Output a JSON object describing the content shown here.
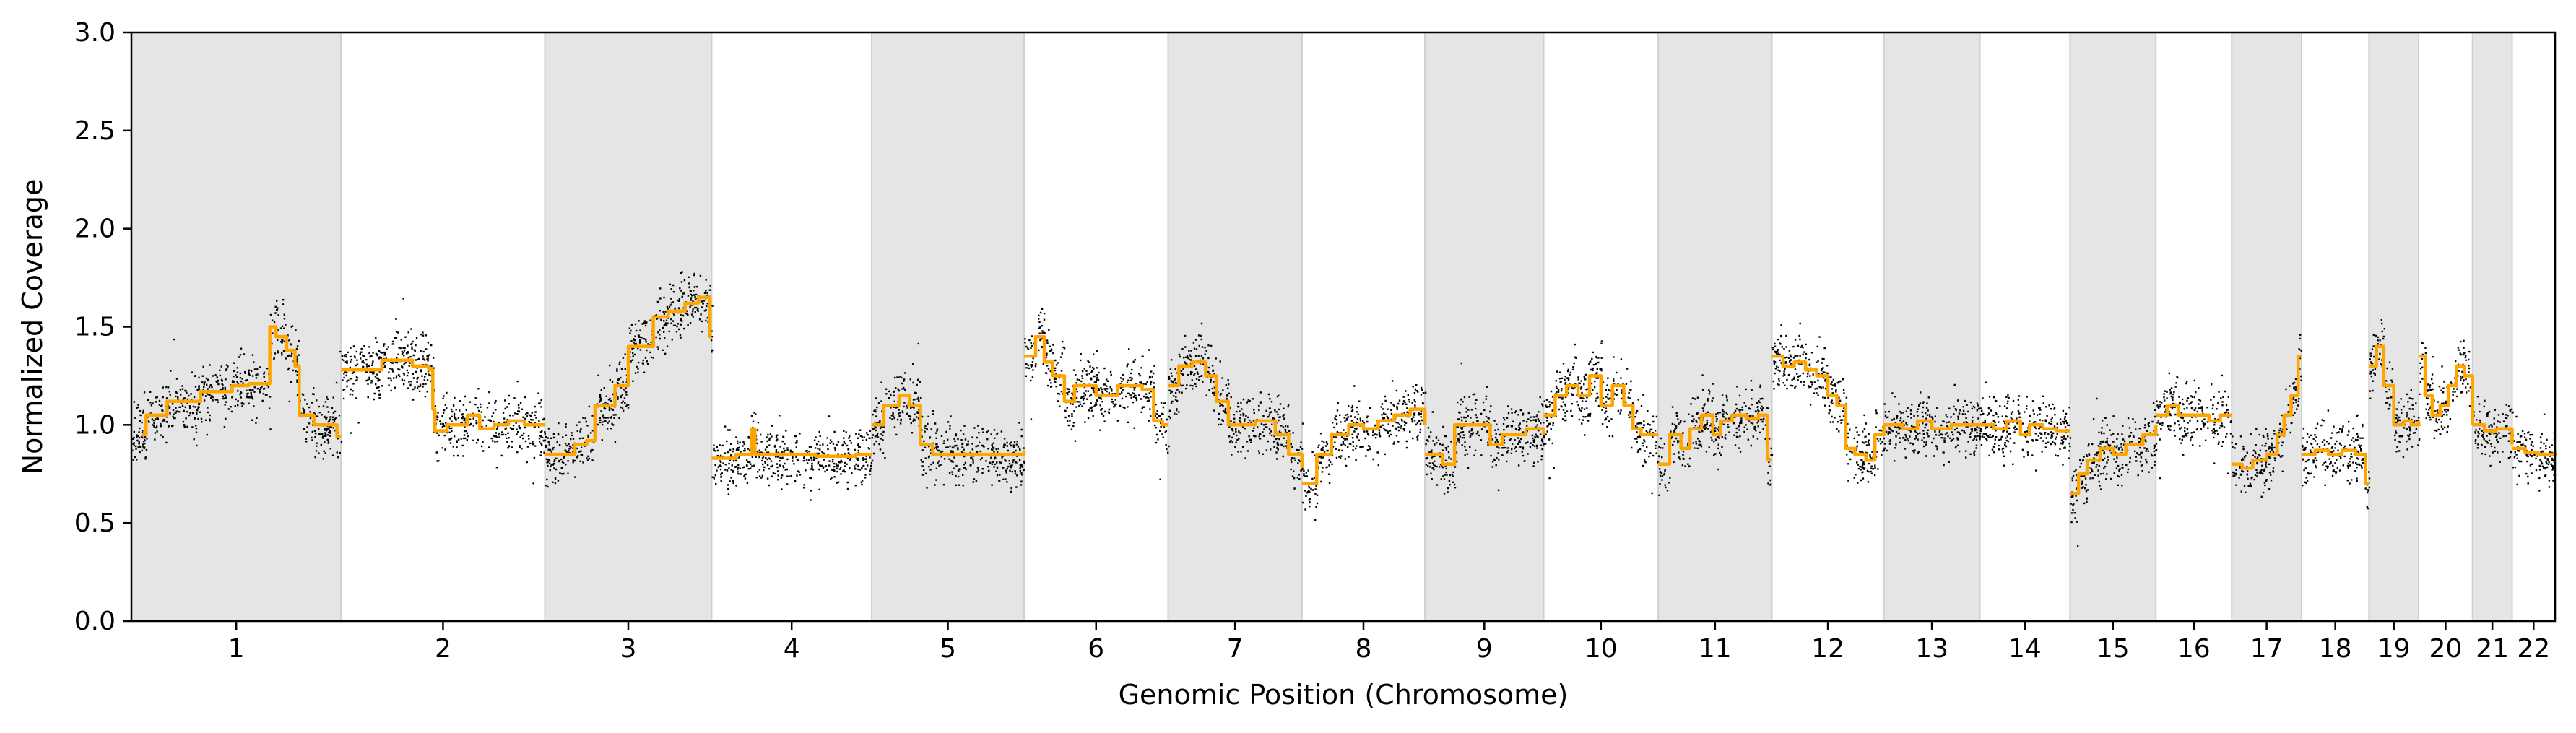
{
  "chart_data": {
    "type": "scatter",
    "title": "",
    "xlabel": "Genomic Position (Chromosome)",
    "ylabel": "Normalized Coverage",
    "ylim": [
      0,
      3
    ],
    "yticks": [
      "0.0",
      "0.5",
      "1.0",
      "1.5",
      "2.0",
      "2.5",
      "3.0"
    ],
    "grid": false,
    "legend": "none",
    "point_color": "#000000",
    "segment_color": "#ffa500",
    "shade_color": "#e5e5e5",
    "chromosomes": [
      {
        "label": "1",
        "length": 249,
        "shaded": true,
        "segments": [
          [
            0.05,
            0.95
          ],
          [
            0.07,
            1.05
          ],
          [
            0.17,
            1.12
          ],
          [
            0.33,
            1.17
          ],
          [
            0.48,
            1.2
          ],
          [
            0.56,
            1.21
          ],
          [
            0.62,
            1.21
          ],
          [
            0.66,
            1.5
          ],
          [
            0.69,
            1.45
          ],
          [
            0.74,
            1.38
          ],
          [
            0.78,
            1.3
          ],
          [
            0.8,
            1.05
          ],
          [
            0.87,
            1.0
          ],
          [
            0.94,
            1.0
          ],
          [
            0.98,
            0.94
          ]
        ]
      },
      {
        "label": "2",
        "length": 242,
        "shaded": false,
        "segments": [
          [
            0.0,
            1.28
          ],
          [
            0.2,
            1.33
          ],
          [
            0.35,
            1.3
          ],
          [
            0.43,
            1.28
          ],
          [
            0.45,
            1.08
          ],
          [
            0.46,
            0.97
          ],
          [
            0.52,
            1.0
          ],
          [
            0.62,
            1.05
          ],
          [
            0.68,
            0.98
          ],
          [
            0.75,
            1.0
          ],
          [
            0.82,
            1.02
          ],
          [
            0.9,
            1.0
          ],
          [
            0.96,
            1.0
          ]
        ]
      },
      {
        "label": "3",
        "length": 198,
        "shaded": true,
        "segments": [
          [
            0.0,
            0.85
          ],
          [
            0.18,
            0.9
          ],
          [
            0.25,
            0.92
          ],
          [
            0.3,
            1.1
          ],
          [
            0.42,
            1.2
          ],
          [
            0.5,
            1.4
          ],
          [
            0.65,
            1.55
          ],
          [
            0.74,
            1.58
          ],
          [
            0.84,
            1.62
          ],
          [
            0.92,
            1.65
          ],
          [
            0.99,
            1.45
          ]
        ]
      },
      {
        "label": "4",
        "length": 190,
        "shaded": false,
        "segments": [
          [
            0.0,
            0.83
          ],
          [
            0.15,
            0.85
          ],
          [
            0.25,
            0.98
          ],
          [
            0.27,
            0.85
          ],
          [
            0.45,
            0.85
          ],
          [
            0.65,
            0.84
          ],
          [
            0.9,
            0.85
          ],
          [
            1.0,
            0.85
          ]
        ]
      },
      {
        "label": "5",
        "length": 181,
        "shaded": true,
        "segments": [
          [
            0.0,
            1.0
          ],
          [
            0.08,
            1.1
          ],
          [
            0.18,
            1.15
          ],
          [
            0.25,
            1.1
          ],
          [
            0.32,
            0.9
          ],
          [
            0.4,
            0.85
          ],
          [
            0.6,
            0.85
          ],
          [
            0.8,
            0.85
          ],
          [
            1.0,
            0.87
          ]
        ]
      },
      {
        "label": "6",
        "length": 171,
        "shaded": false,
        "segments": [
          [
            0.0,
            1.35
          ],
          [
            0.08,
            1.45
          ],
          [
            0.14,
            1.32
          ],
          [
            0.2,
            1.25
          ],
          [
            0.28,
            1.12
          ],
          [
            0.35,
            1.2
          ],
          [
            0.5,
            1.15
          ],
          [
            0.65,
            1.2
          ],
          [
            0.82,
            1.18
          ],
          [
            0.9,
            1.02
          ],
          [
            0.96,
            1.0
          ]
        ]
      },
      {
        "label": "7",
        "length": 159,
        "shaded": true,
        "segments": [
          [
            0.0,
            1.2
          ],
          [
            0.08,
            1.3
          ],
          [
            0.18,
            1.32
          ],
          [
            0.28,
            1.25
          ],
          [
            0.36,
            1.12
          ],
          [
            0.45,
            1.0
          ],
          [
            0.55,
            1.0
          ],
          [
            0.65,
            1.02
          ],
          [
            0.8,
            0.95
          ],
          [
            0.9,
            0.85
          ],
          [
            1.0,
            0.78
          ]
        ]
      },
      {
        "label": "8",
        "length": 146,
        "shaded": false,
        "segments": [
          [
            0.0,
            0.7
          ],
          [
            0.12,
            0.85
          ],
          [
            0.24,
            0.95
          ],
          [
            0.38,
            1.0
          ],
          [
            0.5,
            0.98
          ],
          [
            0.62,
            1.02
          ],
          [
            0.75,
            1.05
          ],
          [
            0.88,
            1.08
          ],
          [
            1.0,
            1.0
          ]
        ]
      },
      {
        "label": "9",
        "length": 141,
        "shaded": true,
        "segments": [
          [
            0.0,
            0.85
          ],
          [
            0.15,
            0.8
          ],
          [
            0.25,
            1.0
          ],
          [
            0.5,
            1.0
          ],
          [
            0.55,
            0.9
          ],
          [
            0.65,
            0.95
          ],
          [
            0.85,
            0.98
          ],
          [
            1.0,
            0.95
          ]
        ]
      },
      {
        "label": "10",
        "length": 136,
        "shaded": false,
        "segments": [
          [
            0.0,
            1.05
          ],
          [
            0.1,
            1.15
          ],
          [
            0.2,
            1.2
          ],
          [
            0.3,
            1.15
          ],
          [
            0.4,
            1.25
          ],
          [
            0.5,
            1.1
          ],
          [
            0.6,
            1.2
          ],
          [
            0.7,
            1.1
          ],
          [
            0.78,
            0.98
          ],
          [
            0.85,
            0.95
          ],
          [
            1.0,
            0.95
          ]
        ]
      },
      {
        "label": "11",
        "length": 135,
        "shaded": true,
        "segments": [
          [
            0.0,
            0.8
          ],
          [
            0.1,
            0.95
          ],
          [
            0.2,
            0.88
          ],
          [
            0.28,
            0.98
          ],
          [
            0.38,
            1.05
          ],
          [
            0.48,
            0.95
          ],
          [
            0.55,
            1.02
          ],
          [
            0.65,
            1.05
          ],
          [
            0.78,
            1.03
          ],
          [
            0.88,
            1.05
          ],
          [
            0.96,
            0.82
          ]
        ]
      },
      {
        "label": "12",
        "length": 133,
        "shaded": false,
        "segments": [
          [
            0.0,
            1.35
          ],
          [
            0.1,
            1.3
          ],
          [
            0.2,
            1.32
          ],
          [
            0.3,
            1.28
          ],
          [
            0.4,
            1.25
          ],
          [
            0.5,
            1.15
          ],
          [
            0.58,
            1.1
          ],
          [
            0.66,
            0.88
          ],
          [
            0.74,
            0.85
          ],
          [
            0.84,
            0.82
          ],
          [
            0.92,
            0.95
          ],
          [
            1.0,
            1.0
          ]
        ]
      },
      {
        "label": "13",
        "length": 114,
        "shaded": true,
        "segments": [
          [
            0.0,
            1.0
          ],
          [
            0.2,
            0.98
          ],
          [
            0.35,
            1.02
          ],
          [
            0.5,
            0.98
          ],
          [
            0.7,
            1.0
          ],
          [
            0.85,
            1.0
          ],
          [
            1.0,
            1.0
          ]
        ]
      },
      {
        "label": "14",
        "length": 107,
        "shaded": false,
        "segments": [
          [
            0.0,
            1.0
          ],
          [
            0.15,
            0.98
          ],
          [
            0.3,
            1.02
          ],
          [
            0.45,
            0.95
          ],
          [
            0.55,
            1.0
          ],
          [
            0.7,
            0.98
          ],
          [
            0.85,
            0.97
          ],
          [
            1.0,
            0.97
          ]
        ]
      },
      {
        "label": "15",
        "length": 102,
        "shaded": true,
        "segments": [
          [
            0.0,
            0.65
          ],
          [
            0.1,
            0.75
          ],
          [
            0.2,
            0.82
          ],
          [
            0.35,
            0.88
          ],
          [
            0.5,
            0.85
          ],
          [
            0.65,
            0.9
          ],
          [
            0.85,
            0.95
          ],
          [
            1.0,
            1.0
          ]
        ]
      },
      {
        "label": "16",
        "length": 90,
        "shaded": false,
        "segments": [
          [
            0.0,
            1.05
          ],
          [
            0.15,
            1.1
          ],
          [
            0.3,
            1.05
          ],
          [
            0.5,
            1.05
          ],
          [
            0.7,
            1.02
          ],
          [
            0.85,
            1.05
          ],
          [
            1.0,
            1.05
          ]
        ]
      },
      {
        "label": "17",
        "length": 83,
        "shaded": true,
        "segments": [
          [
            0.0,
            0.8
          ],
          [
            0.15,
            0.78
          ],
          [
            0.3,
            0.82
          ],
          [
            0.5,
            0.85
          ],
          [
            0.65,
            0.95
          ],
          [
            0.75,
            1.05
          ],
          [
            0.85,
            1.15
          ],
          [
            0.95,
            1.35
          ]
        ]
      },
      {
        "label": "18",
        "length": 80,
        "shaded": false,
        "segments": [
          [
            0.0,
            0.85
          ],
          [
            0.2,
            0.87
          ],
          [
            0.4,
            0.85
          ],
          [
            0.6,
            0.87
          ],
          [
            0.8,
            0.85
          ],
          [
            0.95,
            0.7
          ]
        ]
      },
      {
        "label": "19",
        "length": 59,
        "shaded": true,
        "segments": [
          [
            0.0,
            1.3
          ],
          [
            0.15,
            1.4
          ],
          [
            0.3,
            1.2
          ],
          [
            0.5,
            1.0
          ],
          [
            0.7,
            1.02
          ],
          [
            0.85,
            1.0
          ],
          [
            1.0,
            1.02
          ]
        ]
      },
      {
        "label": "20",
        "length": 64,
        "shaded": false,
        "segments": [
          [
            0.0,
            1.35
          ],
          [
            0.12,
            1.15
          ],
          [
            0.25,
            1.05
          ],
          [
            0.4,
            1.1
          ],
          [
            0.55,
            1.2
          ],
          [
            0.7,
            1.3
          ],
          [
            0.85,
            1.25
          ],
          [
            1.0,
            1.0
          ]
        ]
      },
      {
        "label": "21",
        "length": 47,
        "shaded": true,
        "segments": [
          [
            0.0,
            1.0
          ],
          [
            0.3,
            0.97
          ],
          [
            0.6,
            0.98
          ],
          [
            1.0,
            0.9
          ]
        ]
      },
      {
        "label": "22",
        "length": 51,
        "shaded": false,
        "segments": [
          [
            0.0,
            0.88
          ],
          [
            0.3,
            0.86
          ],
          [
            0.6,
            0.85
          ],
          [
            1.0,
            0.86
          ]
        ]
      }
    ]
  }
}
